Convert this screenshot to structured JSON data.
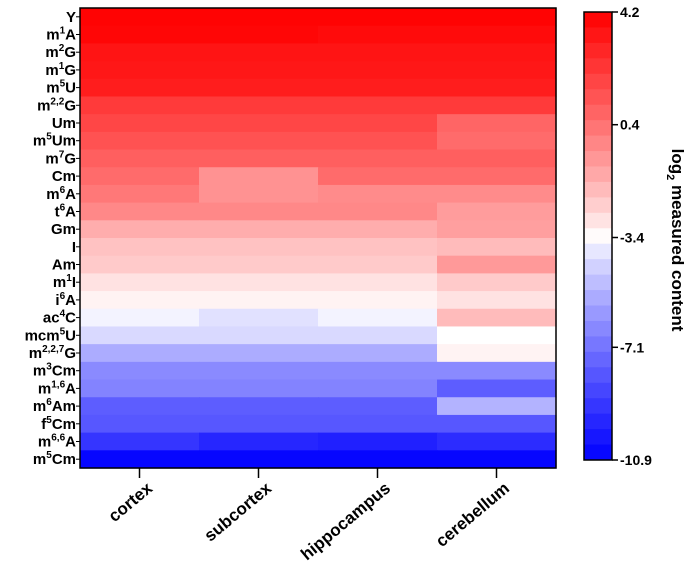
{
  "chart_data": {
    "type": "heatmap",
    "title": "",
    "xlabel": "",
    "ylabel": "",
    "x": [
      "cortex",
      "subcortex",
      "hippocampus",
      "cerebellum"
    ],
    "y": [
      {
        "base": "Y",
        "sup": ""
      },
      {
        "base": "m",
        "sup": "1",
        "tail": "A"
      },
      {
        "base": "m",
        "sup": "2",
        "tail": "G"
      },
      {
        "base": "m",
        "sup": "1",
        "tail": "G"
      },
      {
        "base": "m",
        "sup": "5",
        "tail": "U"
      },
      {
        "base": "m",
        "sup": "2,2",
        "tail": "G"
      },
      {
        "base": "Um",
        "sup": ""
      },
      {
        "base": "m",
        "sup": "5",
        "tail": "Um"
      },
      {
        "base": "m",
        "sup": "7",
        "tail": "G"
      },
      {
        "base": "Cm",
        "sup": ""
      },
      {
        "base": "m",
        "sup": "6",
        "tail": "A"
      },
      {
        "base": "t",
        "sup": "6",
        "tail": "A"
      },
      {
        "base": "Gm",
        "sup": ""
      },
      {
        "base": "I",
        "sup": ""
      },
      {
        "base": "Am",
        "sup": ""
      },
      {
        "base": "m",
        "sup": "1",
        "tail": "I"
      },
      {
        "base": "i",
        "sup": "6",
        "tail": "A"
      },
      {
        "base": "ac",
        "sup": "4",
        "tail": "C"
      },
      {
        "base": "mcm",
        "sup": "5",
        "tail": "U"
      },
      {
        "base": "m",
        "sup": "2,2,7",
        "tail": "G"
      },
      {
        "base": "m",
        "sup": "3",
        "tail": "Cm"
      },
      {
        "base": "m",
        "sup": "1,6",
        "tail": "A"
      },
      {
        "base": "m",
        "sup": "6",
        "tail": "Am"
      },
      {
        "base": "f",
        "sup": "5",
        "tail": "Cm"
      },
      {
        "base": "m",
        "sup": "6,6",
        "tail": "A"
      },
      {
        "base": "m",
        "sup": "5",
        "tail": "Cm"
      }
    ],
    "values": [
      [
        4.1,
        4.1,
        4.1,
        4.1
      ],
      [
        4.0,
        4.0,
        3.8,
        3.8
      ],
      [
        3.5,
        3.5,
        3.5,
        3.5
      ],
      [
        3.4,
        3.4,
        3.4,
        3.4
      ],
      [
        3.2,
        3.2,
        3.2,
        3.2
      ],
      [
        2.2,
        2.2,
        2.2,
        2.2
      ],
      [
        1.8,
        1.8,
        1.8,
        0.8
      ],
      [
        1.4,
        1.4,
        1.4,
        0.6
      ],
      [
        1.0,
        1.0,
        1.0,
        1.0
      ],
      [
        0.6,
        -0.6,
        0.6,
        0.6
      ],
      [
        0.2,
        -0.6,
        -0.4,
        -0.4
      ],
      [
        -0.3,
        -0.3,
        -0.3,
        -0.9
      ],
      [
        -1.4,
        -1.4,
        -1.4,
        -1.0
      ],
      [
        -2.0,
        -2.0,
        -2.0,
        -1.8
      ],
      [
        -2.2,
        -2.2,
        -2.2,
        -0.8
      ],
      [
        -2.8,
        -2.8,
        -2.8,
        -2.2
      ],
      [
        -3.2,
        -3.2,
        -3.2,
        -2.8
      ],
      [
        -3.6,
        -4.0,
        -3.6,
        -1.8
      ],
      [
        -4.2,
        -4.2,
        -4.2,
        -3.4
      ],
      [
        -5.4,
        -5.4,
        -5.4,
        -3.2
      ],
      [
        -6.4,
        -6.4,
        -6.4,
        -6.4
      ],
      [
        -6.6,
        -6.6,
        -6.6,
        -7.8
      ],
      [
        -7.8,
        -7.8,
        -7.8,
        -5.2
      ],
      [
        -8.0,
        -8.0,
        -8.0,
        -8.0
      ],
      [
        -9.1,
        -9.6,
        -9.8,
        -9.4
      ],
      [
        -10.7,
        -10.7,
        -10.7,
        -10.7
      ]
    ],
    "colorbar": {
      "label_main": "log",
      "label_sub": "2",
      "label_rest": " measured content",
      "ticks": [
        4.2,
        0.4,
        -3.4,
        -7.1,
        -10.9
      ],
      "tick_labels": [
        "4.2",
        "0.4",
        "-3.4",
        "-7.1",
        "-10.9"
      ],
      "min": -10.9,
      "max": 4.2,
      "steps": 29
    },
    "colors": {
      "high": "#ff0000",
      "mid": "#ffffff",
      "low": "#0000ff",
      "mid_value": -3.4
    },
    "grid": false,
    "legend_position": "right"
  }
}
